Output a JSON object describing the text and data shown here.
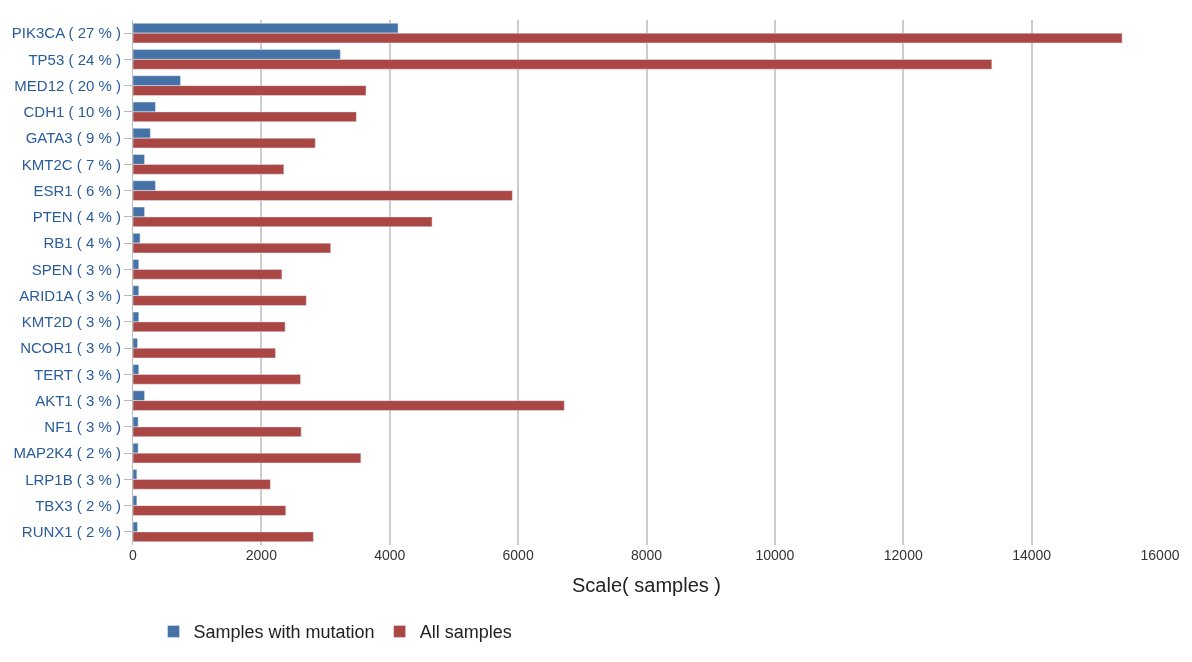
{
  "chart_data": {
    "type": "bar",
    "orientation": "horizontal",
    "xlabel": "Scale( samples )",
    "categories": [
      "PIK3CA ( 27 % )",
      "TP53 ( 24 % )",
      "MED12 ( 20 % )",
      "CDH1 ( 10 % )",
      "GATA3 ( 9 % )",
      "KMT2C ( 7 % )",
      "ESR1 ( 6 % )",
      "PTEN ( 4 % )",
      "RB1 ( 4 % )",
      "SPEN ( 3 % )",
      "ARID1A ( 3 % )",
      "KMT2D ( 3 % )",
      "NCOR1 ( 3 % )",
      "TERT ( 3 % )",
      "AKT1 ( 3 % )",
      "NF1 ( 3 % )",
      "MAP2K4 ( 2 % )",
      "LRP1B ( 3 % )",
      "TBX3 ( 2 % )",
      "RUNX1 ( 2 % )"
    ],
    "series": [
      {
        "name": "Samples with mutation",
        "color": "#4572a7",
        "values": [
          4130,
          3230,
          740,
          350,
          270,
          180,
          350,
          180,
          110,
          90,
          90,
          90,
          70,
          90,
          180,
          80,
          80,
          60,
          60,
          70
        ]
      },
      {
        "name": "All samples",
        "color": "#aa4643",
        "values": [
          15410,
          13380,
          3630,
          3480,
          2840,
          2350,
          5910,
          4660,
          3080,
          2320,
          2700,
          2370,
          2220,
          2610,
          6720,
          2620,
          3550,
          2140,
          2380,
          2810
        ]
      }
    ],
    "xlim": [
      0,
      16000
    ],
    "xticks": [
      0,
      2000,
      4000,
      6000,
      8000,
      10000,
      12000,
      14000,
      16000
    ],
    "grid": "x",
    "legend": "bottom"
  }
}
